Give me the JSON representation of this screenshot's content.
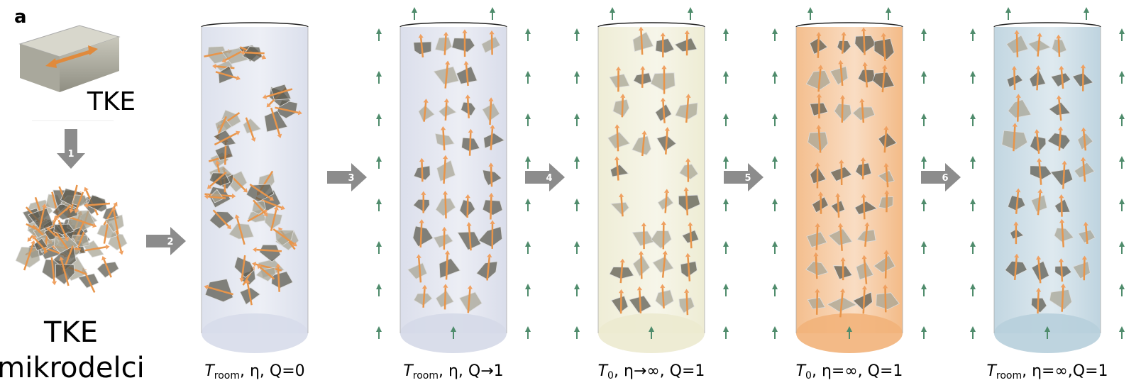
{
  "panel_label": "a",
  "source": {
    "block_label": "TKE",
    "particles_label": [
      "TKE",
      "mikrodelci"
    ]
  },
  "steps": [
    "1",
    "2",
    "3",
    "4",
    "5",
    "6"
  ],
  "cylinders": [
    {
      "caption": {
        "symbol": "T",
        "subscript": "room",
        "rest": ", η, Q=0"
      }
    },
    {
      "caption": {
        "symbol": "T",
        "subscript": "room",
        "rest": ", η, Q→1"
      }
    },
    {
      "caption": {
        "symbol": "T",
        "subscript": "0",
        "rest": ", η→∞, Q=1"
      }
    },
    {
      "caption": {
        "symbol": "T",
        "subscript": "0",
        "rest": ", η=∞, Q=1"
      }
    },
    {
      "caption": {
        "symbol": "T",
        "subscript": "room",
        "rest": ", η=∞,Q=1"
      }
    }
  ]
}
